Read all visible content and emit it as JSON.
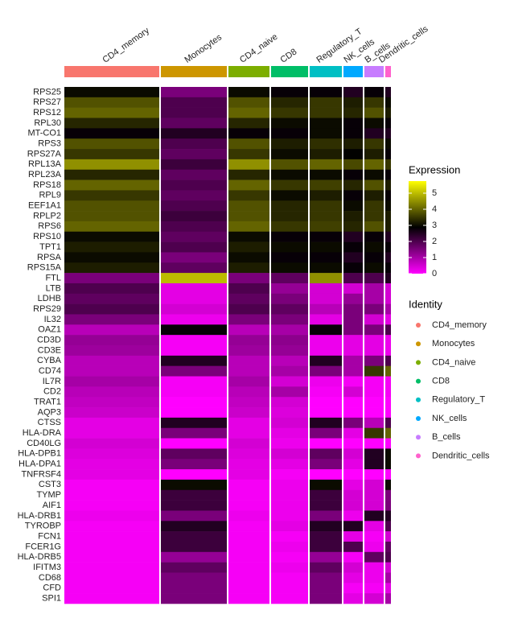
{
  "chart_data": {
    "type": "heatmap",
    "rows": [
      "RPS25",
      "RPS27",
      "RPS12",
      "RPL30",
      "MT-CO1",
      "RPS3",
      "RPS27A",
      "RPL13A",
      "RPL23A",
      "RPS18",
      "RPL9",
      "EEF1A1",
      "RPLP2",
      "RPS6",
      "RPS10",
      "TPT1",
      "RPSA",
      "RPS15A",
      "FTL",
      "LTB",
      "LDHB",
      "RPS29",
      "IL32",
      "OAZ1",
      "CD3D",
      "CD3E",
      "CYBA",
      "CD74",
      "IL7R",
      "CD2",
      "TRAT1",
      "AQP3",
      "CTSS",
      "HLA-DRA",
      "CD40LG",
      "HLA-DPB1",
      "HLA-DPA1",
      "TNFRSF4",
      "CST3",
      "TYMP",
      "AIF1",
      "HLA-DRB1",
      "TYROBP",
      "FCN1",
      "FCER1G",
      "HLA-DRB5",
      "IFITM3",
      "CD68",
      "CFD",
      "SPI1"
    ],
    "columns": [
      "CD4_memory",
      "Monocytes",
      "CD4_naive",
      "CD8",
      "Regulatory_T",
      "NK_cells",
      "B_cells",
      "Dendritic_cells"
    ],
    "column_colors": [
      "#F8766D",
      "#CD9600",
      "#7CAE00",
      "#00BE67",
      "#00BFC4",
      "#00A9FF",
      "#C77CFF",
      "#FF61CC"
    ],
    "values": [
      [
        3,
        1.5,
        3,
        2.8,
        2.8,
        2.5,
        2.8,
        2.5
      ],
      [
        3.8,
        2,
        3.8,
        3.3,
        3.5,
        3.2,
        3.5,
        3
      ],
      [
        4,
        2,
        4,
        3.5,
        3.5,
        3.3,
        3.8,
        3.2
      ],
      [
        3.3,
        1.8,
        3.3,
        3,
        3,
        2.8,
        3,
        2.8
      ],
      [
        2.8,
        2.5,
        2.8,
        2.8,
        3,
        2.8,
        2.5,
        2.5
      ],
      [
        3.8,
        2,
        3.8,
        3.2,
        3.4,
        3.2,
        3.5,
        3
      ],
      [
        3.5,
        1.8,
        3.5,
        3,
        3.2,
        2.9,
        3.2,
        2.8
      ],
      [
        4.5,
        2.2,
        4.5,
        3.8,
        4,
        3.7,
        4,
        3.5
      ],
      [
        3.3,
        1.8,
        3.3,
        3,
        3,
        2.8,
        3,
        2.8
      ],
      [
        4,
        2,
        4,
        3.5,
        3.6,
        3.3,
        3.8,
        3.2
      ],
      [
        3.5,
        1.8,
        3.5,
        3,
        3.2,
        2.8,
        3.2,
        2.8
      ],
      [
        3.8,
        2,
        3.8,
        3.3,
        3.5,
        3,
        3.5,
        3
      ],
      [
        3.8,
        2.2,
        3.8,
        3.3,
        3.5,
        3.2,
        3.5,
        3.2
      ],
      [
        4,
        2,
        4,
        3.5,
        3.6,
        3.3,
        3.8,
        3.2
      ],
      [
        3,
        1.8,
        3,
        2.8,
        2.8,
        2.5,
        2.8,
        2.5
      ],
      [
        3.2,
        2,
        3.2,
        3,
        3,
        2.8,
        3,
        2.8
      ],
      [
        3,
        1.5,
        3,
        2.8,
        2.8,
        2.5,
        2.8,
        2.5
      ],
      [
        3.2,
        1.8,
        3.2,
        3,
        3,
        2.8,
        3,
        2.8
      ],
      [
        1.5,
        5,
        1.5,
        1.8,
        4.5,
        2,
        2,
        2.5
      ],
      [
        2,
        0.3,
        2,
        1.2,
        0.5,
        0.5,
        1,
        0.5
      ],
      [
        1.8,
        0.3,
        1.8,
        1.5,
        0.5,
        1.2,
        1,
        0.5
      ],
      [
        2,
        0.5,
        2,
        1.8,
        0.8,
        1.5,
        1.5,
        1
      ],
      [
        1.5,
        0.2,
        1.5,
        1.5,
        0.3,
        1.5,
        0.5,
        0.3
      ],
      [
        0.8,
        2.8,
        0.8,
        1,
        2.8,
        1.5,
        1.5,
        2
      ],
      [
        1.2,
        0.1,
        1.2,
        1.3,
        0.2,
        0.3,
        0.3,
        0.2
      ],
      [
        1.1,
        0.1,
        1.1,
        1.2,
        0.2,
        0.3,
        0.3,
        0.2
      ],
      [
        0.8,
        2.5,
        0.8,
        0.8,
        2.5,
        1,
        1.5,
        2
      ],
      [
        0.8,
        1.5,
        0.8,
        1,
        1.5,
        1,
        3.5,
        4
      ],
      [
        1,
        0.1,
        1,
        0.5,
        0.2,
        0.1,
        0.1,
        0.1
      ],
      [
        0.8,
        0.1,
        0.8,
        1,
        0.1,
        0.5,
        0.1,
        0.1
      ],
      [
        0.7,
        0,
        0.7,
        0.5,
        0,
        0,
        0,
        0
      ],
      [
        0.6,
        0,
        0.6,
        0.4,
        0,
        0,
        0,
        0
      ],
      [
        0.3,
        2.5,
        0.3,
        0.5,
        2.5,
        1.5,
        0.8,
        2
      ],
      [
        0.3,
        1.5,
        0.3,
        0.3,
        1.5,
        0.3,
        3.5,
        4
      ],
      [
        0.5,
        0,
        0.5,
        0.2,
        0,
        0,
        0,
        0
      ],
      [
        0.4,
        1.8,
        0.4,
        0.5,
        1.8,
        0.5,
        2.5,
        3
      ],
      [
        0.3,
        1.5,
        0.3,
        0.3,
        1.5,
        0.3,
        2.5,
        3
      ],
      [
        0.3,
        0,
        0.3,
        0.1,
        0,
        0,
        0,
        0
      ],
      [
        0.1,
        3,
        0.1,
        0.2,
        3,
        0.3,
        0.5,
        3
      ],
      [
        0.1,
        2.2,
        0.1,
        0.2,
        2.2,
        0.5,
        0.5,
        1.5
      ],
      [
        0.1,
        2.2,
        0.1,
        0.2,
        2.2,
        0.5,
        0.5,
        1.5
      ],
      [
        0.2,
        1.5,
        0.2,
        0.2,
        1.5,
        0.2,
        2.5,
        2.5
      ],
      [
        0.1,
        2.5,
        0.1,
        0.3,
        2.5,
        2.5,
        0.3,
        2
      ],
      [
        0.1,
        2.2,
        0.1,
        0.1,
        2.2,
        0.3,
        0.1,
        0.5
      ],
      [
        0.1,
        2.2,
        0.1,
        0.2,
        2.2,
        2,
        0.2,
        1.8
      ],
      [
        0.1,
        1.2,
        0.1,
        0.1,
        1.2,
        0.1,
        1.8,
        2
      ],
      [
        0.1,
        1.8,
        0.1,
        0.2,
        1.8,
        0.5,
        0.2,
        0.5
      ],
      [
        0.1,
        1.5,
        0.1,
        0.1,
        1.5,
        0.3,
        0.2,
        1
      ],
      [
        0.1,
        1.5,
        0.1,
        0.1,
        1.5,
        0.1,
        0.1,
        0.3
      ],
      [
        0.1,
        1.5,
        0.1,
        0.1,
        1.5,
        0.3,
        0.5,
        1
      ]
    ],
    "colorbar_title": "Expression",
    "clim": [
      0,
      5.75
    ],
    "cticks": [
      0,
      1,
      2,
      3,
      4,
      5
    ],
    "colors": [
      "#FF00FF",
      "#000000",
      "#FFFF00"
    ],
    "legend_title": "Identity"
  }
}
